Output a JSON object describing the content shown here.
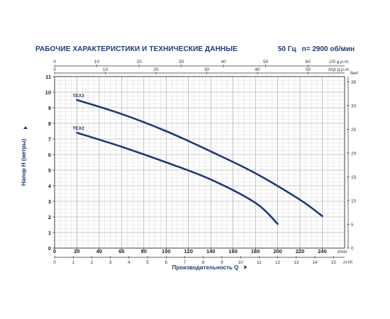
{
  "header": {
    "title": "РАБОЧИЕ ХАРАКТЕРИСТИКИ И ТЕХНИЧЕСКИЕ ДАННЫЕ",
    "frequency": "50 Гц",
    "speed": "n= 2900 об/мин"
  },
  "chart_data": {
    "type": "line",
    "xlabel": "Производительность Q",
    "ylabel": "Напор H (метры)",
    "x_unit": "l/min",
    "xlim": [
      0,
      260
    ],
    "ylim": [
      0,
      11
    ],
    "x_ticks": [
      0,
      20,
      40,
      60,
      80,
      100,
      120,
      140,
      160,
      180,
      200,
      220,
      240
    ],
    "y_ticks": [
      0,
      1,
      2,
      3,
      4,
      5,
      6,
      7,
      8,
      9,
      10,
      11
    ],
    "grid": true,
    "series": [
      {
        "name": "TEX3",
        "x": [
          20,
          60,
          100,
          140,
          180,
          220,
          240
        ],
        "y": [
          9.5,
          8.6,
          7.5,
          6.2,
          4.8,
          3.1,
          2.05
        ]
      },
      {
        "name": "TEX2",
        "x": [
          20,
          60,
          100,
          140,
          180,
          200
        ],
        "y": [
          7.4,
          6.5,
          5.5,
          4.4,
          2.9,
          1.55
        ]
      }
    ],
    "secondary_axes": {
      "us_gpm": {
        "label": "US g.p.m.",
        "ticks": [
          0,
          10,
          20,
          30,
          40,
          50,
          60
        ]
      },
      "imp_gpm": {
        "label": "Imp g.p.m.",
        "ticks": [
          0,
          10,
          20,
          30,
          40,
          50
        ]
      },
      "m3h": {
        "label": "m³/h",
        "ticks": [
          0,
          1,
          2,
          3,
          4,
          5,
          6,
          7,
          8,
          9,
          10,
          11,
          12,
          13,
          14,
          15
        ]
      },
      "feet": {
        "label": "feet",
        "ticks": [
          0,
          5,
          10,
          15,
          20,
          25,
          30,
          35
        ]
      }
    }
  }
}
